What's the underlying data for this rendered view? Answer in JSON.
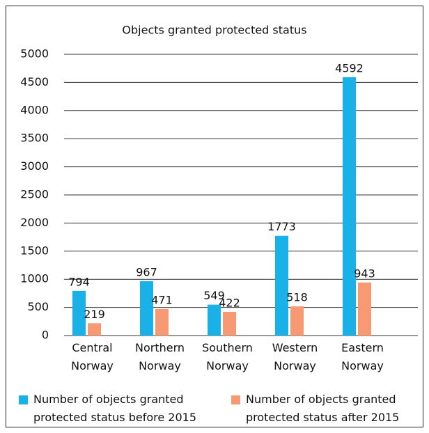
{
  "chart_data": {
    "type": "bar",
    "title": "Objects granted protected status",
    "categories": [
      "Central Norway",
      "Northern Norway",
      "Southern Norway",
      "Western Norway",
      "Eastern Norway"
    ],
    "series": [
      {
        "name": "Number of objects granted protected status before 2015",
        "color": "#1ab0e8",
        "values": [
          794,
          967,
          549,
          1773,
          4592
        ]
      },
      {
        "name": "Number of objects granted protected status after 2015",
        "color": "#f79a74",
        "values": [
          219,
          471,
          422,
          518,
          943
        ]
      }
    ],
    "ylim": [
      0,
      5000
    ],
    "yticks": [
      0,
      500,
      1000,
      1500,
      2000,
      2500,
      3000,
      3500,
      4000,
      4500,
      5000
    ],
    "grid": true,
    "legend": "bottom"
  }
}
